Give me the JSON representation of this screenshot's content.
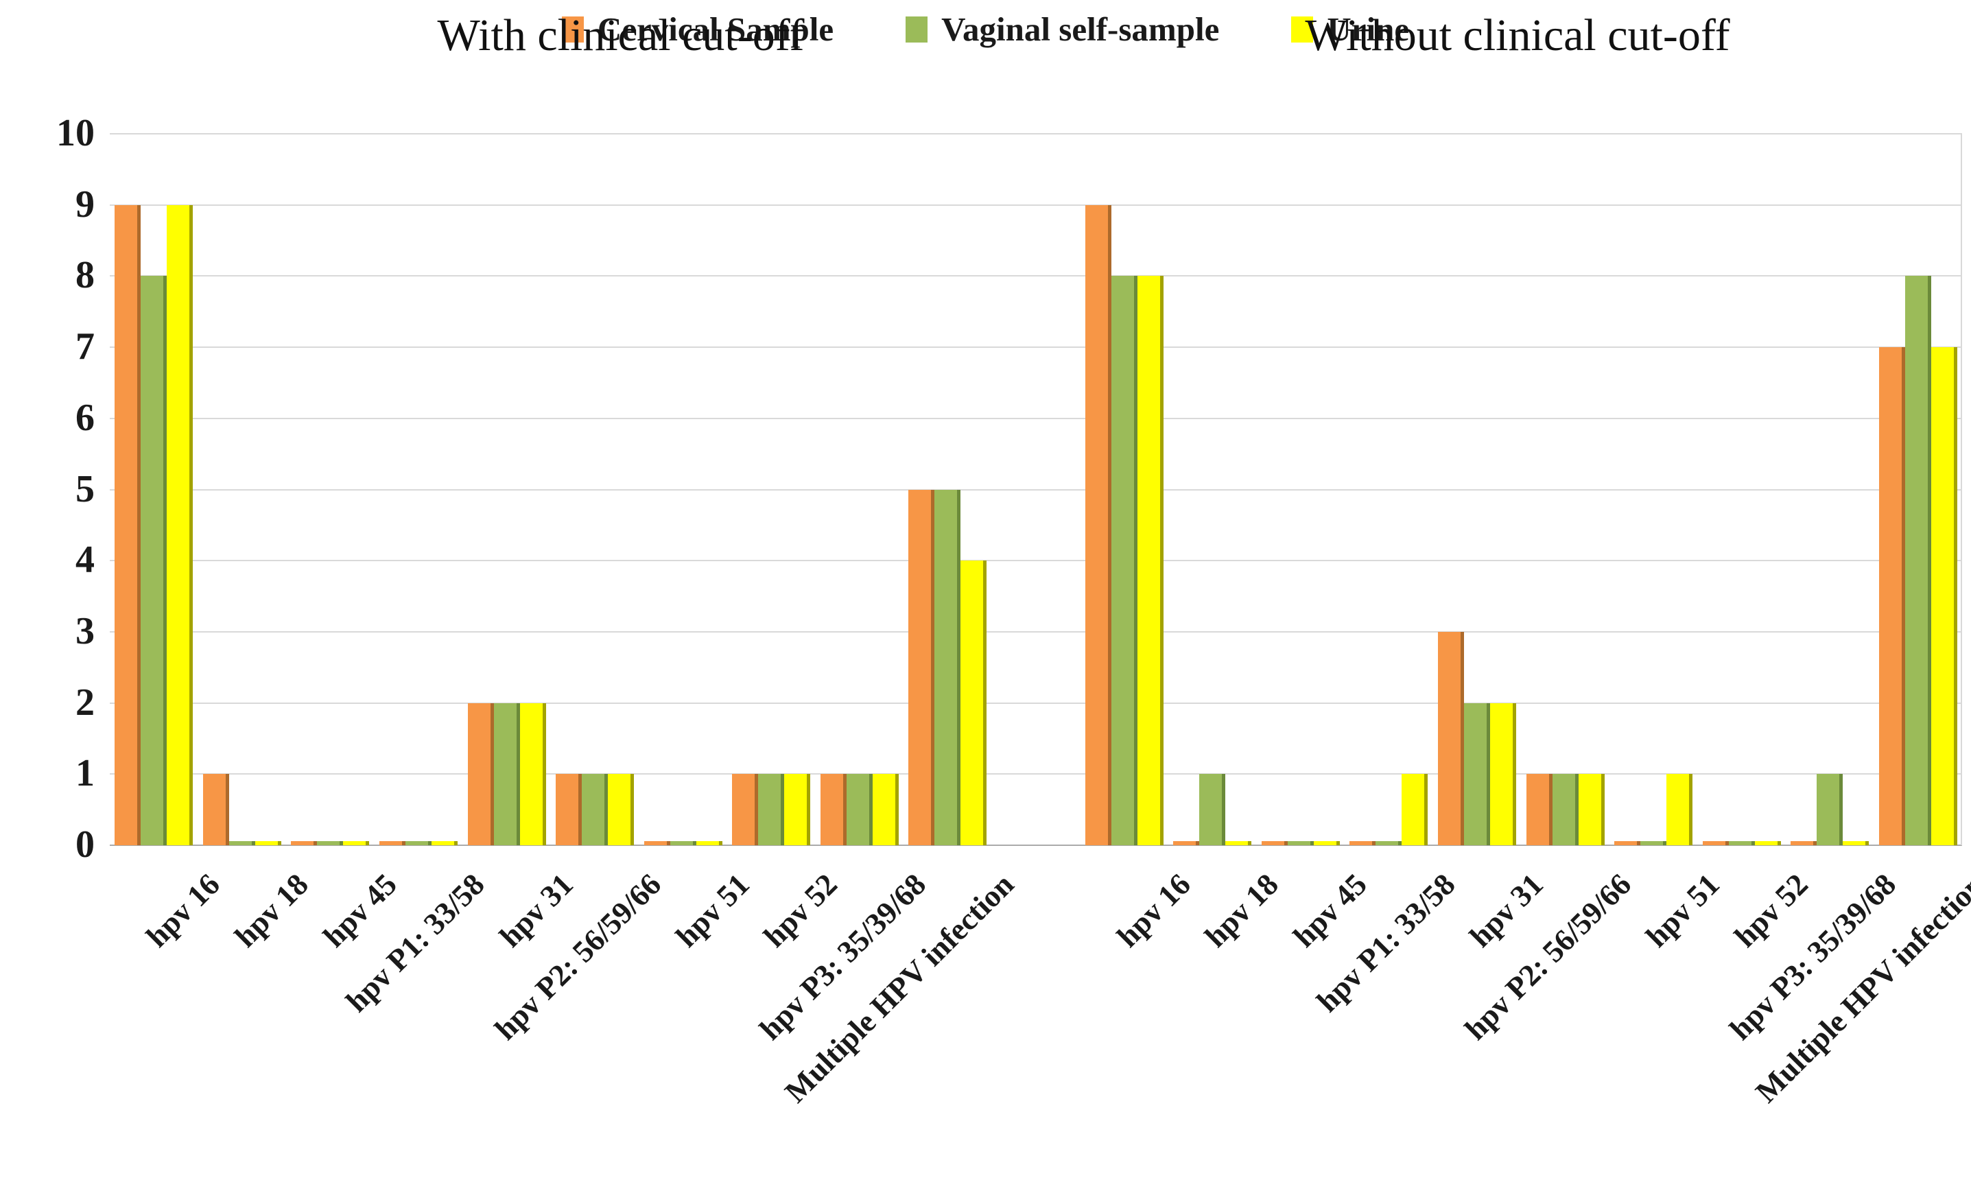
{
  "legend": {
    "items": [
      {
        "label": "Cervical Sample",
        "color": "#F79646"
      },
      {
        "label": "Vaginal self-sample",
        "color": "#9BBB59"
      },
      {
        "label": "Urine",
        "color": "#FFFF00"
      }
    ]
  },
  "chart_data": {
    "type": "bar",
    "title": "",
    "xlabel": "",
    "ylabel": "",
    "ylim": [
      0,
      10
    ],
    "yticks": [
      0,
      1,
      2,
      3,
      4,
      5,
      6,
      7,
      8,
      9,
      10
    ],
    "grid": true,
    "legend_position": "top",
    "colors": {
      "cervical": "#F79646",
      "cervical_edge": "#AD6A2B",
      "vaginal": "#9BBB59",
      "vaginal_edge": "#6B8A3A",
      "urine": "#FFFF00",
      "urine_edge": "#A3A300",
      "gridline": "#D9D9D9"
    },
    "categories": [
      "hpv 16",
      "hpv 18",
      "hpv 45",
      "hpv P1: 33/58",
      "hpv 31",
      "hpv P2: 56/59/66",
      "hpv 51",
      "hpv 52",
      "hpv P3: 35/39/68",
      "Multiple HPV infection"
    ],
    "groups": [
      {
        "title": "With clinical cut-off",
        "series": [
          {
            "name": "Cervical Sample",
            "color": "#F79646",
            "edge": "#AD6A2B",
            "values": [
              9,
              1,
              0,
              0,
              2,
              1,
              0,
              1,
              1,
              5
            ]
          },
          {
            "name": "Vaginal self-sample",
            "color": "#9BBB59",
            "edge": "#6B8A3A",
            "values": [
              8,
              0,
              0,
              0,
              2,
              1,
              0,
              1,
              1,
              5
            ]
          },
          {
            "name": "Urine",
            "color": "#FFFF00",
            "edge": "#A3A300",
            "values": [
              9,
              0,
              0,
              0,
              2,
              1,
              0,
              1,
              1,
              4
            ]
          }
        ]
      },
      {
        "title": "Without clinical cut-off",
        "series": [
          {
            "name": "Cervical Sample",
            "color": "#F79646",
            "edge": "#AD6A2B",
            "values": [
              9,
              0,
              0,
              0,
              3,
              1,
              0,
              0,
              0,
              7
            ]
          },
          {
            "name": "Vaginal self-sample",
            "color": "#9BBB59",
            "edge": "#6B8A3A",
            "values": [
              8,
              1,
              0,
              0,
              2,
              1,
              0,
              0,
              1,
              8
            ]
          },
          {
            "name": "Urine",
            "color": "#FFFF00",
            "edge": "#A3A300",
            "values": [
              8,
              0,
              0,
              1,
              2,
              1,
              1,
              0,
              0,
              7
            ]
          }
        ]
      }
    ]
  }
}
